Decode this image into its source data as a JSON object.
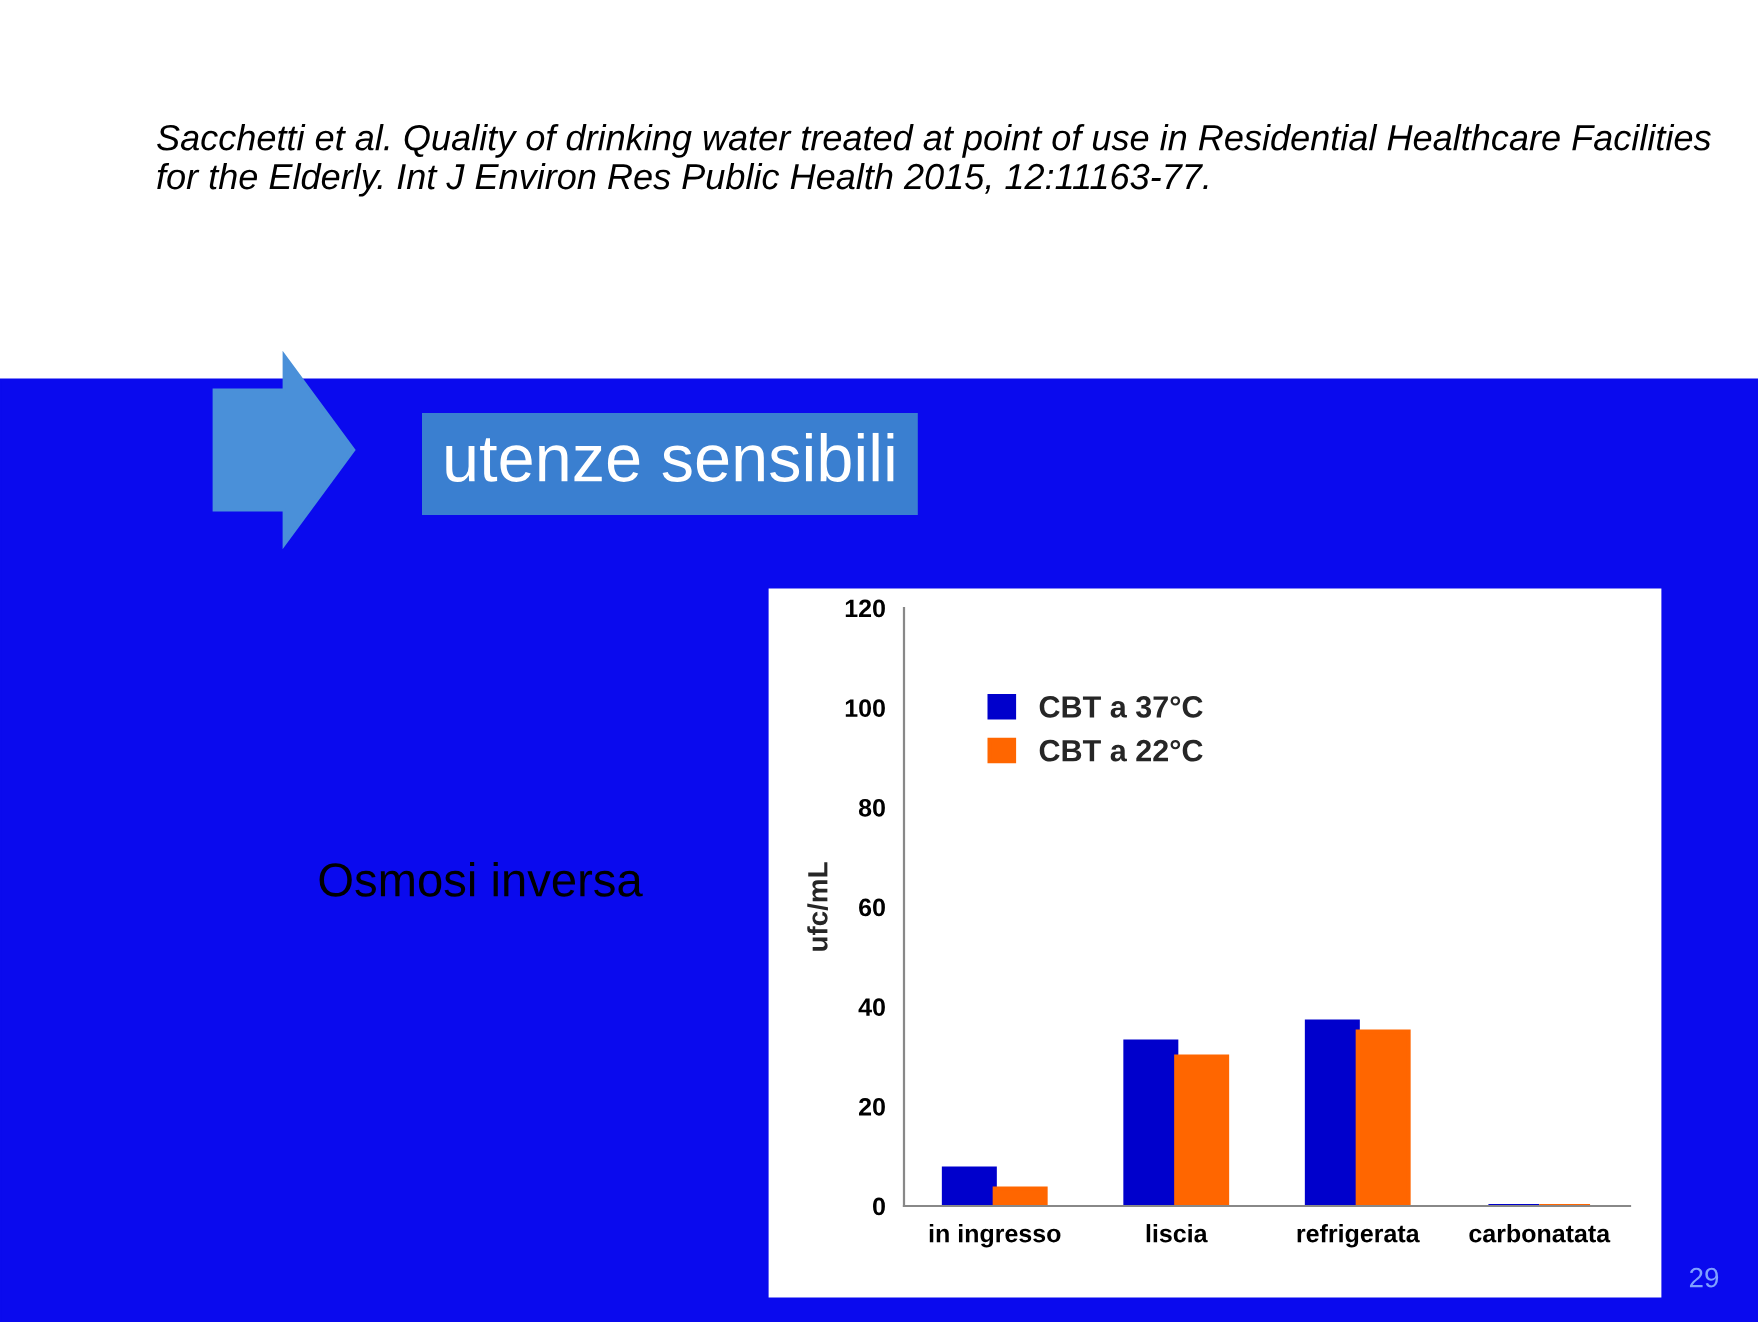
{
  "chart_data": {
    "type": "bar",
    "title": "Sacchetti et al. Quality of drinking water treated at point of use in Residential Healthcare Facilities for the Elderly. Int J Environ Res Public Health 2015, 12:11163-77.",
    "annotations": [
      "utenze sensibili",
      "Osmosi inversa",
      "29"
    ],
    "categories": [
      "in ingresso",
      "liscia",
      "refrigerata",
      "carbonatata"
    ],
    "series": [
      {
        "name": "CBT a 37°C",
        "color": "#0000cc",
        "values": [
          7.5,
          33,
          37,
          0
        ]
      },
      {
        "name": "CBT a 22°C",
        "color": "#ff6600",
        "values": [
          3.5,
          30,
          35,
          0
        ]
      }
    ],
    "ylabel": "ufc/mL",
    "ylim": [
      0,
      120
    ],
    "yticks": [
      0,
      20,
      40,
      60,
      80,
      100,
      120
    ],
    "grid": false,
    "legend": "top left"
  }
}
